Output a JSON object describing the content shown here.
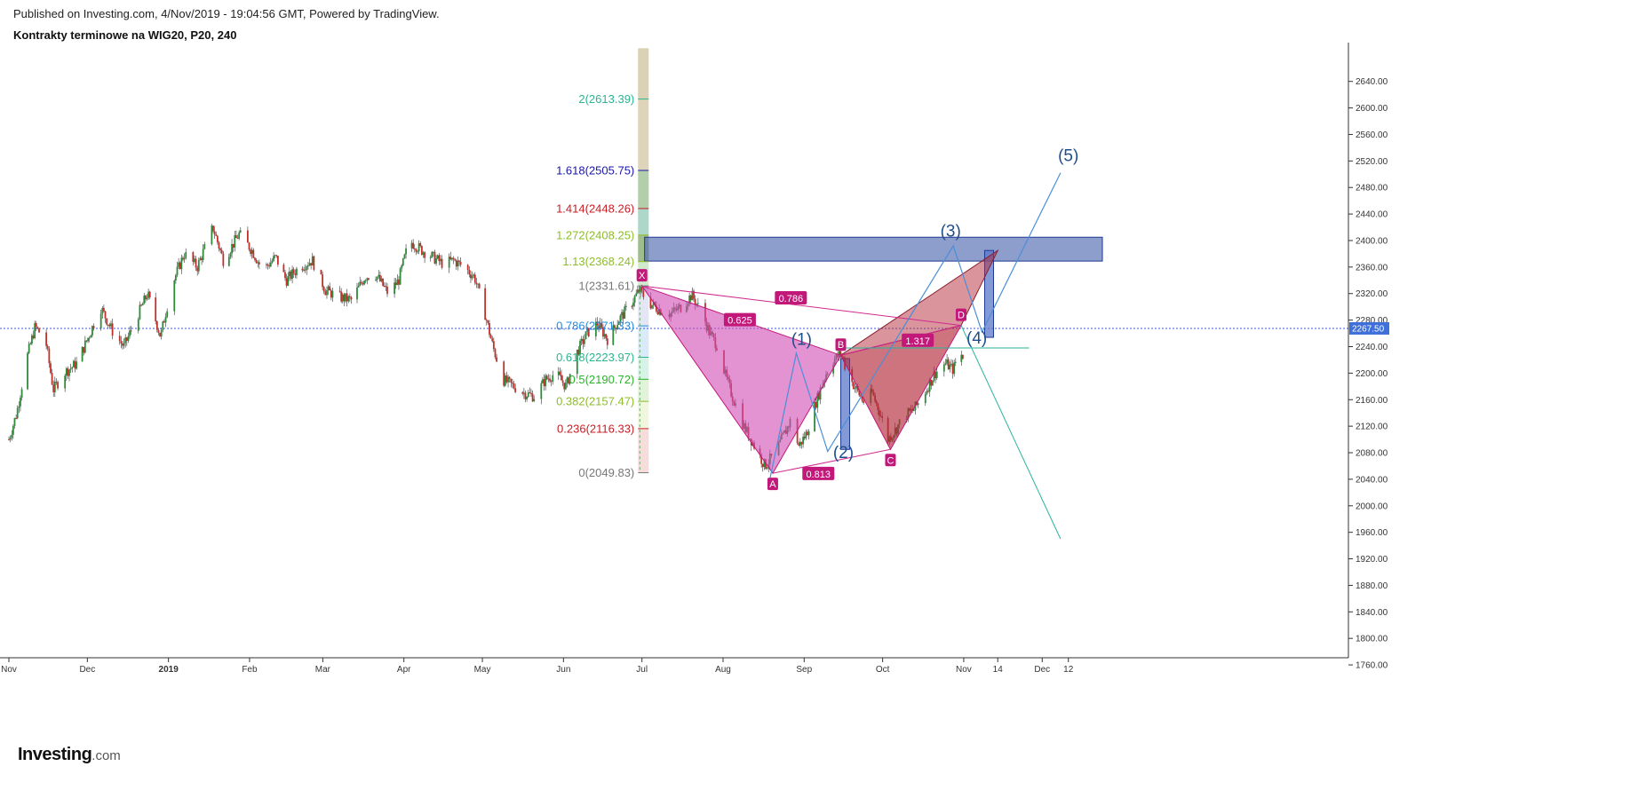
{
  "header": {
    "published": "Published on Investing.com, 4/Nov/2019 - 19:04:56 GMT, Powered by TradingView.",
    "title": "Kontrakty terminowe na WIG20, P20, 240"
  },
  "logo": {
    "name": "Investing",
    "suffix": ".com"
  },
  "chart_data": {
    "type": "candlestick",
    "title": "Kontrakty terminowe na WIG20, P20, 240",
    "ylim": [
      1740,
      2660
    ],
    "y_ticks": [
      1760,
      1800,
      1840,
      1880,
      1920,
      1960,
      2000,
      2040,
      2080,
      2120,
      2160,
      2200,
      2240,
      2280,
      2320,
      2360,
      2400,
      2440,
      2480,
      2520,
      2560,
      2600,
      2640
    ],
    "x_ticks": [
      {
        "label": "Nov",
        "t": 0
      },
      {
        "label": "Dec",
        "t": 30
      },
      {
        "label": "2019",
        "t": 61,
        "bold": true
      },
      {
        "label": "Feb",
        "t": 92
      },
      {
        "label": "Mar",
        "t": 120
      },
      {
        "label": "Apr",
        "t": 151
      },
      {
        "label": "May",
        "t": 181
      },
      {
        "label": "Jun",
        "t": 212
      },
      {
        "label": "Jul",
        "t": 242
      },
      {
        "label": "Aug",
        "t": 273
      },
      {
        "label": "Sep",
        "t": 304
      },
      {
        "label": "Oct",
        "t": 334
      },
      {
        "label": "Nov",
        "t": 365
      },
      {
        "label": "14",
        "t": 378
      },
      {
        "label": "Dec",
        "t": 395
      },
      {
        "label": "12",
        "t": 405
      }
    ],
    "price_path": [
      [
        0,
        2100
      ],
      [
        3,
        2140
      ],
      [
        7,
        2225
      ],
      [
        10,
        2270
      ],
      [
        14,
        2250
      ],
      [
        17,
        2175
      ],
      [
        21,
        2200
      ],
      [
        26,
        2215
      ],
      [
        31,
        2260
      ],
      [
        35,
        2300
      ],
      [
        40,
        2260
      ],
      [
        44,
        2240
      ],
      [
        49,
        2285
      ],
      [
        53,
        2320
      ],
      [
        58,
        2255
      ],
      [
        62,
        2330
      ],
      [
        67,
        2380
      ],
      [
        72,
        2360
      ],
      [
        78,
        2420
      ],
      [
        82,
        2370
      ],
      [
        88,
        2410
      ],
      [
        93,
        2385
      ],
      [
        97,
        2355
      ],
      [
        102,
        2375
      ],
      [
        106,
        2340
      ],
      [
        111,
        2360
      ],
      [
        116,
        2370
      ],
      [
        121,
        2325
      ],
      [
        126,
        2315
      ],
      [
        131,
        2310
      ],
      [
        136,
        2345
      ],
      [
        140,
        2350
      ],
      [
        145,
        2320
      ],
      [
        149,
        2340
      ],
      [
        153,
        2400
      ],
      [
        158,
        2385
      ],
      [
        162,
        2375
      ],
      [
        166,
        2365
      ],
      [
        170,
        2370
      ],
      [
        174,
        2360
      ],
      [
        178,
        2345
      ],
      [
        182,
        2290
      ],
      [
        185,
        2240
      ],
      [
        189,
        2190
      ],
      [
        193,
        2180
      ],
      [
        197,
        2170
      ],
      [
        201,
        2165
      ],
      [
        205,
        2190
      ],
      [
        209,
        2200
      ],
      [
        213,
        2180
      ],
      [
        217,
        2230
      ],
      [
        221,
        2260
      ],
      [
        225,
        2275
      ],
      [
        229,
        2250
      ],
      [
        233,
        2280
      ],
      [
        237,
        2300
      ],
      [
        241,
        2325
      ],
      [
        245,
        2305
      ],
      [
        249,
        2295
      ],
      [
        253,
        2290
      ],
      [
        257,
        2300
      ],
      [
        261,
        2318
      ],
      [
        265,
        2290
      ],
      [
        268,
        2260
      ],
      [
        271,
        2240
      ],
      [
        274,
        2195
      ],
      [
        277,
        2160
      ],
      [
        281,
        2120
      ],
      [
        285,
        2090
      ],
      [
        289,
        2060
      ],
      [
        293,
        2080
      ],
      [
        296,
        2105
      ],
      [
        299,
        2130
      ],
      [
        302,
        2090
      ],
      [
        305,
        2110
      ],
      [
        308,
        2150
      ],
      [
        311,
        2185
      ],
      [
        314,
        2215
      ],
      [
        318,
        2230
      ],
      [
        321,
        2195
      ],
      [
        324,
        2175
      ],
      [
        327,
        2155
      ],
      [
        330,
        2170
      ],
      [
        333,
        2140
      ],
      [
        336,
        2100
      ],
      [
        339,
        2115
      ],
      [
        342,
        2135
      ],
      [
        346,
        2145
      ],
      [
        350,
        2170
      ],
      [
        354,
        2200
      ],
      [
        358,
        2215
      ],
      [
        361,
        2205
      ],
      [
        363,
        2230
      ],
      [
        365,
        2225
      ]
    ],
    "last_price": "2267.50",
    "last_price_value": 2267.5,
    "fib_levels": [
      {
        "label": "2(2613.39)",
        "value": 2613.39,
        "color": "#2ab58f",
        "band": "#d7ccad"
      },
      {
        "label": "1.618(2505.75)",
        "value": 2505.75,
        "color": "#1a17a6",
        "band": "#a4c69c"
      },
      {
        "label": "1.414(2448.26)",
        "value": 2448.26,
        "color": "#c81d25",
        "band": "#9fd0c0"
      },
      {
        "label": "1.272(2408.25)",
        "value": 2408.25,
        "color": "#8dbd2a",
        "band": "#8fb27a"
      },
      {
        "label": "1.13(2368.24)",
        "value": 2368.24,
        "color": "#8dbd2a",
        "band": "#c8e6c4"
      },
      {
        "label": "1(2331.61)",
        "value": 2331.61,
        "color": "#777777",
        "band": "#dfe2f5"
      },
      {
        "label": "0.786(2271.33)",
        "value": 2271.33,
        "color": "#2a8bd8",
        "band": "#d3e6f7"
      },
      {
        "label": "0.618(2223.97)",
        "value": 2223.97,
        "color": "#2ab58f",
        "band": "#d0f0e3"
      },
      {
        "label": "0.5(2190.72)",
        "value": 2190.72,
        "color": "#2bb32b",
        "band": "#dcf2d2"
      },
      {
        "label": "0.382(2157.47)",
        "value": 2157.47,
        "color": "#8dbd2a",
        "band": "#eef5d8"
      },
      {
        "label": "0.236(2116.33)",
        "value": 2116.33,
        "color": "#c81d25",
        "band": "#f6d6d6"
      },
      {
        "label": "0(2049.83)",
        "value": 2049.83,
        "color": "#777777",
        "band": null
      }
    ],
    "pattern_points": [
      {
        "label": "X",
        "t": 242,
        "v": 2331.61
      },
      {
        "label": "A",
        "t": 292,
        "v": 2049
      },
      {
        "label": "B",
        "t": 318,
        "v": 2227
      },
      {
        "label": "C",
        "t": 337,
        "v": 2085
      },
      {
        "label": "D",
        "t": 364,
        "v": 2272
      }
    ],
    "pattern_ratios": [
      {
        "label": "0.786"
      },
      {
        "label": "0.625"
      },
      {
        "label": "0.813"
      },
      {
        "label": "1.317"
      }
    ],
    "waves": [
      "(1)",
      "(2)",
      "(3)",
      "(4)",
      "(5)"
    ]
  }
}
